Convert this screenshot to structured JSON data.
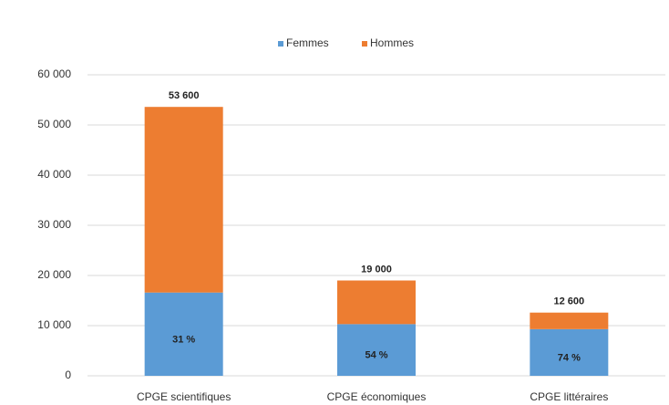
{
  "chart_data": {
    "type": "stacked_bar",
    "categories": [
      "CPGE scientifiques",
      "CPGE économiques",
      "CPGE littéraires"
    ],
    "series": [
      {
        "name": "Femmes",
        "color": "#5b9bd5",
        "values": [
          16600,
          10300,
          9300
        ],
        "shares": [
          31,
          54,
          74
        ],
        "share_labels": [
          "31 %",
          "54 %",
          "74 %"
        ]
      },
      {
        "name": "Hommes",
        "color": "#ed7d31",
        "values": [
          37000,
          8700,
          3300
        ]
      }
    ],
    "totals": [
      53600,
      19000,
      12600
    ],
    "total_labels": [
      "53 600",
      "19 000",
      "12 600"
    ],
    "ylim": [
      0,
      60000
    ],
    "yticks": [
      0,
      {
        "value": 10000,
        "label": "10 000"
      },
      {
        "value": 20000,
        "label": "20 000"
      },
      {
        "value": 30000,
        "label": "30 000"
      },
      {
        "value": 40000,
        "label": "40 000"
      },
      {
        "value": 50000,
        "label": "50 000"
      },
      {
        "value": 60000,
        "label": "60 000"
      }
    ],
    "grid": true,
    "legend": "top"
  }
}
